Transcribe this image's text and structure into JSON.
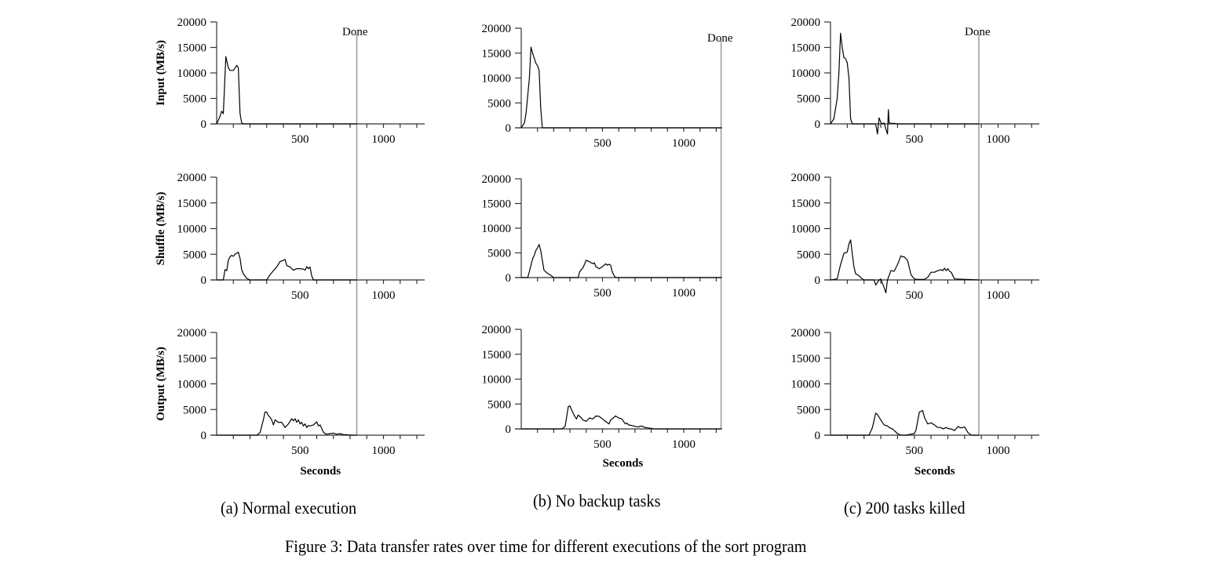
{
  "figure": {
    "caption": "Figure 3: Data transfer rates over time for different executions of the sort program",
    "done_label": "Done",
    "xlabel": "Seconds",
    "y_ticks": [
      "0",
      "5000",
      "10000",
      "15000",
      "20000"
    ],
    "x_ticks": [
      "500",
      "1000"
    ],
    "row_labels": [
      "Input (MB/s)",
      "Shuffle (MB/s)",
      "Output (MB/s)"
    ],
    "subcaptions": [
      "(a) Normal execution",
      "(b) No backup tasks",
      "(c) 200 tasks killed"
    ],
    "colors": {
      "line": "#000000",
      "done_line": "#999999",
      "axis": "#333333"
    }
  },
  "chart_data": [
    {
      "id": "a",
      "title": "(a) Normal execution",
      "type": "line",
      "xlabel": "Seconds",
      "xlim": [
        0,
        1250
      ],
      "ylim": [
        0,
        20000
      ],
      "done_at": 840,
      "series": [
        {
          "name": "Input (MB/s)",
          "x": [
            0,
            20,
            30,
            40,
            55,
            70,
            80,
            100,
            120,
            130,
            140,
            150,
            160,
            170,
            200,
            400,
            840
          ],
          "y": [
            0,
            1500,
            2500,
            2000,
            13200,
            11000,
            10500,
            10500,
            11500,
            11000,
            2000,
            200,
            0,
            0,
            0,
            0,
            0
          ]
        },
        {
          "name": "Shuffle (MB/s)",
          "x": [
            0,
            40,
            50,
            60,
            70,
            80,
            90,
            100,
            110,
            120,
            130,
            140,
            150,
            160,
            180,
            200,
            300,
            320,
            340,
            360,
            380,
            400,
            410,
            420,
            440,
            460,
            480,
            500,
            520,
            530,
            540,
            550,
            560,
            570,
            580,
            600,
            840
          ],
          "y": [
            0,
            0,
            2000,
            1800,
            3800,
            4500,
            4800,
            4600,
            5000,
            5200,
            5400,
            4200,
            2000,
            1200,
            300,
            0,
            0,
            1000,
            1800,
            2500,
            3600,
            3800,
            4000,
            2800,
            2500,
            1900,
            2200,
            2200,
            2100,
            1900,
            2600,
            2200,
            2500,
            800,
            0,
            0,
            0
          ]
        },
        {
          "name": "Output (MB/s)",
          "x": [
            0,
            240,
            260,
            280,
            290,
            300,
            310,
            320,
            330,
            340,
            350,
            370,
            390,
            410,
            430,
            450,
            460,
            470,
            480,
            490,
            500,
            510,
            520,
            530,
            540,
            550,
            560,
            580,
            600,
            610,
            620,
            640,
            650,
            660,
            680,
            700,
            720,
            740,
            760,
            780,
            800,
            840
          ],
          "y": [
            0,
            0,
            500,
            3000,
            4500,
            4500,
            3800,
            3500,
            3000,
            2000,
            3000,
            2500,
            2500,
            1500,
            2200,
            3200,
            2800,
            3200,
            2500,
            3000,
            2200,
            2500,
            1800,
            2200,
            1500,
            1900,
            1800,
            2000,
            2600,
            1800,
            2000,
            600,
            300,
            200,
            300,
            400,
            200,
            300,
            100,
            100,
            0,
            0
          ]
        }
      ]
    },
    {
      "id": "b",
      "title": "(b) No backup tasks",
      "type": "line",
      "xlabel": "Seconds",
      "xlim": [
        0,
        1250
      ],
      "ylim": [
        0,
        20000
      ],
      "done_at": 1230,
      "series": [
        {
          "name": "Input (MB/s)",
          "x": [
            0,
            20,
            30,
            50,
            60,
            70,
            90,
            100,
            110,
            120,
            130,
            1230
          ],
          "y": [
            0,
            1000,
            3000,
            10000,
            16200,
            15000,
            13000,
            12500,
            11500,
            4000,
            0,
            0
          ]
        },
        {
          "name": "Shuffle (MB/s)",
          "x": [
            0,
            40,
            50,
            60,
            70,
            80,
            90,
            100,
            110,
            120,
            130,
            140,
            160,
            180,
            200,
            350,
            360,
            380,
            400,
            420,
            440,
            450,
            460,
            470,
            480,
            500,
            520,
            530,
            540,
            550,
            560,
            570,
            580,
            600,
            1230
          ],
          "y": [
            0,
            0,
            1200,
            2500,
            3800,
            4500,
            5500,
            6000,
            6700,
            5500,
            3500,
            1500,
            900,
            500,
            0,
            0,
            1200,
            2000,
            3500,
            3200,
            2800,
            3000,
            2200,
            2000,
            1800,
            2200,
            2800,
            2500,
            2700,
            2500,
            1200,
            500,
            0,
            0,
            0
          ]
        },
        {
          "name": "Output (MB/s)",
          "x": [
            0,
            250,
            270,
            290,
            300,
            310,
            330,
            340,
            350,
            370,
            380,
            400,
            420,
            440,
            460,
            480,
            500,
            520,
            540,
            550,
            560,
            580,
            600,
            620,
            640,
            650,
            660,
            680,
            700,
            720,
            740,
            760,
            780,
            800,
            820,
            1230
          ],
          "y": [
            0,
            0,
            500,
            4500,
            4600,
            3800,
            2500,
            2000,
            2800,
            2200,
            1800,
            1500,
            2200,
            2000,
            2600,
            2500,
            2000,
            1500,
            1000,
            1800,
            2000,
            2600,
            2200,
            2000,
            1000,
            1200,
            800,
            700,
            500,
            400,
            600,
            300,
            200,
            100,
            0,
            0
          ]
        }
      ]
    },
    {
      "id": "c",
      "title": "(c) 200 tasks killed",
      "type": "line",
      "xlabel": "Seconds",
      "xlim": [
        0,
        1250
      ],
      "ylim": [
        0,
        20000
      ],
      "done_at": 885,
      "series": [
        {
          "name": "Input (MB/s)",
          "x": [
            0,
            20,
            40,
            50,
            60,
            70,
            80,
            90,
            100,
            110,
            120,
            130,
            140,
            200,
            270,
            280,
            290,
            300,
            310,
            320,
            330,
            340,
            345,
            350,
            360,
            380,
            400,
            450,
            885
          ],
          "y": [
            0,
            1000,
            5000,
            10000,
            17800,
            15000,
            13000,
            12800,
            12000,
            9000,
            1000,
            0,
            0,
            0,
            0,
            -2000,
            1200,
            300,
            0,
            200,
            -1000,
            -2000,
            2800,
            200,
            100,
            100,
            0,
            0,
            0
          ]
        },
        {
          "name": "Shuffle (MB/s)",
          "x": [
            0,
            40,
            60,
            80,
            100,
            110,
            120,
            130,
            140,
            150,
            170,
            190,
            200,
            220,
            260,
            270,
            280,
            290,
            300,
            320,
            330,
            340,
            360,
            380,
            400,
            420,
            430,
            440,
            460,
            480,
            500,
            520,
            560,
            580,
            600,
            620,
            640,
            660,
            670,
            680,
            690,
            700,
            710,
            720,
            740,
            885
          ],
          "y": [
            0,
            200,
            3000,
            5200,
            5400,
            7000,
            7800,
            5000,
            2500,
            1200,
            800,
            200,
            0,
            0,
            0,
            -1000,
            -500,
            0,
            200,
            -1500,
            -2500,
            0,
            1800,
            1700,
            3000,
            4700,
            4500,
            4500,
            3800,
            1000,
            200,
            100,
            100,
            500,
            1500,
            1500,
            1800,
            2000,
            1800,
            2300,
            1800,
            2200,
            1700,
            1500,
            200,
            0
          ]
        },
        {
          "name": "Output (MB/s)",
          "x": [
            0,
            230,
            250,
            270,
            280,
            300,
            320,
            340,
            350,
            370,
            400,
            420,
            450,
            480,
            500,
            510,
            530,
            550,
            560,
            580,
            600,
            620,
            640,
            660,
            670,
            690,
            700,
            720,
            740,
            760,
            780,
            800,
            820,
            840,
            885
          ],
          "y": [
            0,
            0,
            1500,
            4300,
            4000,
            3000,
            2000,
            1800,
            1500,
            1200,
            300,
            0,
            0,
            200,
            300,
            1000,
            4500,
            4800,
            3500,
            2200,
            2400,
            2000,
            1500,
            1500,
            1200,
            1500,
            1300,
            1200,
            900,
            1700,
            1400,
            1600,
            500,
            0,
            0
          ]
        }
      ]
    }
  ]
}
